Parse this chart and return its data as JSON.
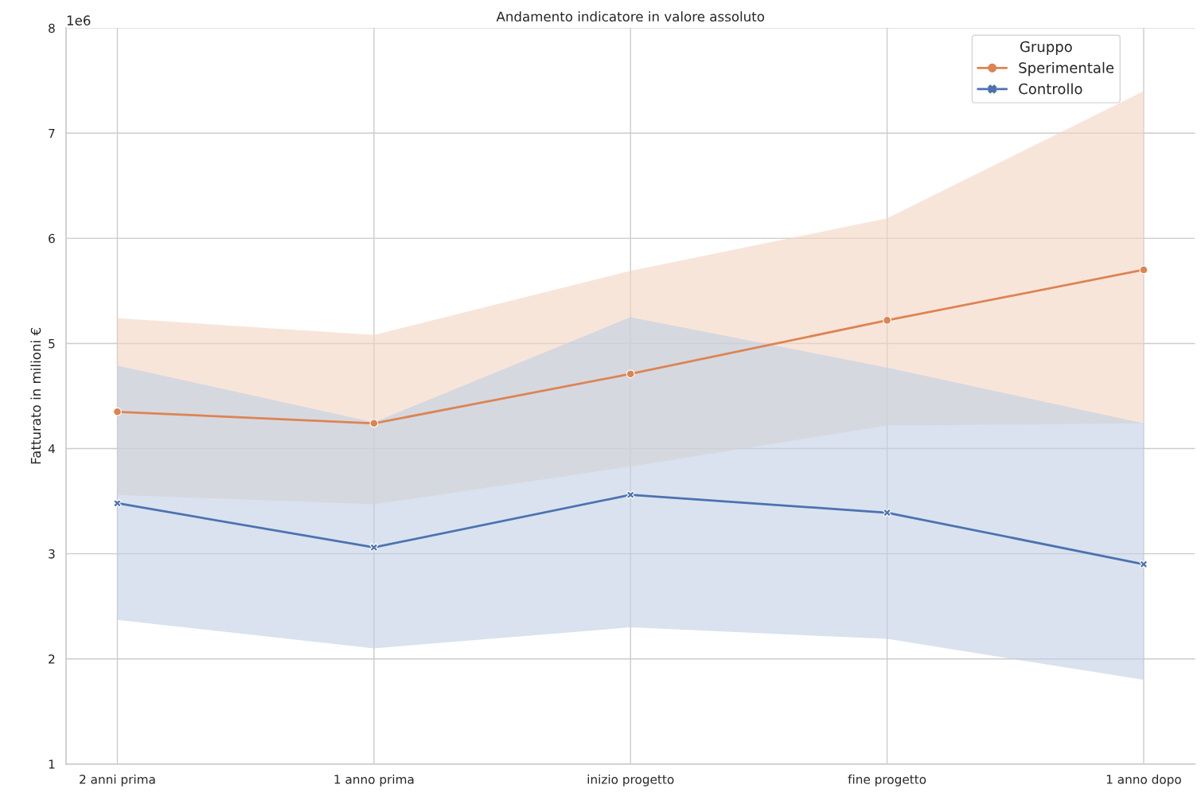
{
  "chart_data": {
    "type": "line",
    "title": "Andamento indicatore in valore assoluto",
    "ylabel": "Fatturato in milioni €",
    "legend_title": "Gruppo",
    "legend": "top right",
    "grid": true,
    "categories": [
      "2 anni prima",
      "1 anno prima",
      "inizio progetto",
      "fine progetto",
      "1 anno dopo"
    ],
    "ylim": [
      1,
      8
    ],
    "yticks": [
      1,
      2,
      3,
      4,
      5,
      6,
      7,
      8
    ],
    "annotations": [
      "1e6"
    ],
    "series": [
      {
        "name": "Sperimentale",
        "color": "#dd8452",
        "marker": "circle",
        "values": [
          4.35,
          4.24,
          4.71,
          5.22,
          5.7
        ],
        "lower": [
          3.56,
          3.47,
          3.83,
          4.22,
          4.24
        ],
        "upper": [
          5.24,
          5.08,
          5.69,
          6.19,
          7.4
        ]
      },
      {
        "name": "Controllo",
        "color": "#4c72b0",
        "marker": "cross",
        "values": [
          3.48,
          3.06,
          3.56,
          3.39,
          2.9
        ],
        "lower": [
          2.37,
          2.1,
          2.3,
          2.19,
          1.8
        ],
        "upper": [
          4.79,
          4.25,
          5.25,
          4.77,
          4.24
        ]
      }
    ]
  }
}
